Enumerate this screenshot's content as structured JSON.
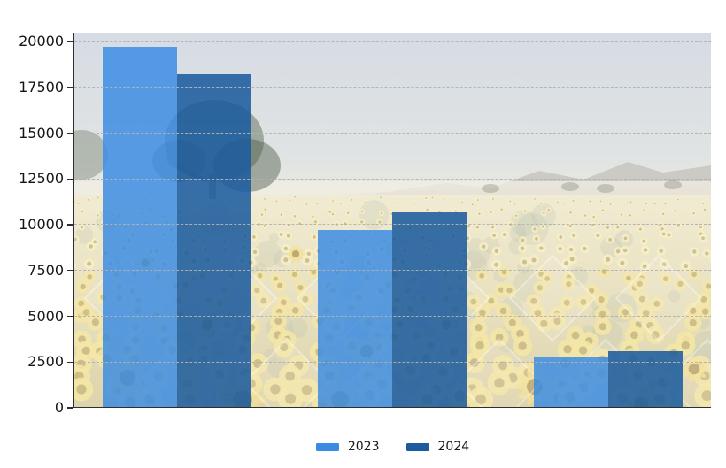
{
  "chart_data": {
    "type": "bar",
    "categories": [
      "",
      "",
      ""
    ],
    "series": [
      {
        "name": "2023",
        "color": "#3a8ce2",
        "values": [
          19700,
          9700,
          2800
        ]
      },
      {
        "name": "2024",
        "color": "#1c5c9e",
        "values": [
          18200,
          10700,
          3100
        ]
      }
    ],
    "title": "",
    "xlabel": "",
    "ylabel": "",
    "ylim": [
      0,
      20000
    ],
    "yticks": [
      0,
      2500,
      5000,
      7500,
      10000,
      12500,
      15000,
      17500,
      20000
    ],
    "ytick_labels": [
      "0",
      "2500",
      "5000",
      "7500",
      "10000",
      "12500",
      "15000",
      "17500",
      "20000"
    ],
    "xtick_labels_visible": false,
    "grid": "horizontal dashed",
    "legend_position": "bottom-center",
    "background": "faded sunflower field photo with sky, distant mountains and trees"
  },
  "legend": {
    "items": [
      {
        "label": "2023",
        "color": "#3a8ce2"
      },
      {
        "label": "2024",
        "color": "#1c5c9e"
      }
    ]
  },
  "colors": {
    "axis": "#2e2e2e",
    "grid": "#b2b2b2",
    "sky": "#d9dfe6",
    "field": "#ece6cb"
  }
}
